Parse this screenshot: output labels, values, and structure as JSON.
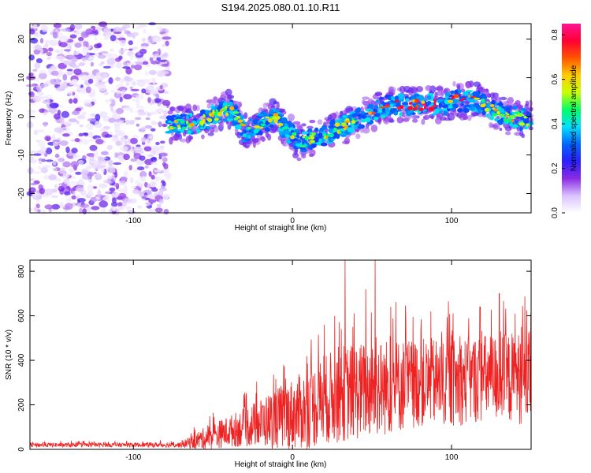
{
  "title": "S194.2025.080.01.10.R11",
  "chart_data": [
    {
      "type": "heatmap",
      "xlabel": "Height of straight line (km)",
      "ylabel": "Frequency (Hz)",
      "xlim": [
        -165,
        150
      ],
      "ylim": [
        -25,
        24
      ],
      "xticks": [
        -100,
        0,
        100
      ],
      "yticks": [
        -20,
        -10,
        0,
        10,
        20
      ],
      "noise_region_x": [
        -165,
        -78
      ],
      "ridge": {
        "x": [
          -78,
          -70,
          -60,
          -50,
          -45,
          -40,
          -35,
          -30,
          -25,
          -20,
          -15,
          -10,
          -5,
          0,
          5,
          10,
          15,
          20,
          25,
          30,
          35,
          40,
          45,
          50,
          55,
          60,
          65,
          70,
          75,
          80,
          85,
          90,
          95,
          100,
          105,
          110,
          115,
          120,
          125,
          130,
          135,
          140,
          145,
          150
        ],
        "freq": [
          -2,
          -2,
          -2,
          0,
          1,
          2,
          0,
          -4,
          -3,
          -2,
          -1,
          0,
          -3,
          -5,
          -7,
          -6,
          -5,
          -5,
          -4,
          -3,
          -2,
          -1,
          0,
          1,
          2,
          3,
          3,
          3,
          3,
          3,
          3,
          3,
          3,
          4,
          4,
          4,
          4,
          3,
          2,
          1,
          0,
          0,
          -1,
          -1
        ]
      },
      "colorbar": {
        "label": "Normalized spectral amplitude",
        "range": [
          0.0,
          0.85
        ],
        "ticks": [
          "0.0",
          "0.2",
          "0.4",
          "0.6",
          "0.8"
        ],
        "tick_values": [
          0.0,
          0.2,
          0.4,
          0.6,
          0.8
        ],
        "colors": [
          "#ffffff",
          "#d9c2ff",
          "#8a2be2",
          "#2a1fff",
          "#0066ff",
          "#00e0ff",
          "#00ff66",
          "#c8ff00",
          "#ffcc00",
          "#ff5500",
          "#ff0033",
          "#ff1493"
        ]
      }
    },
    {
      "type": "line",
      "xlabel": "Height of straight line (km)",
      "ylabel": "SNR (10 * v/v)",
      "xlim": [
        -165,
        150
      ],
      "ylim": [
        0,
        850
      ],
      "xticks": [
        -100,
        0,
        100
      ],
      "yticks": [
        0,
        200,
        400,
        600,
        800
      ],
      "color": "#ee2222",
      "envelope": {
        "x": [
          -165,
          -100,
          -70,
          -60,
          -50,
          -40,
          -30,
          -20,
          -10,
          0,
          10,
          20,
          30,
          40,
          50,
          60,
          70,
          80,
          90,
          100,
          110,
          120,
          130,
          140,
          150
        ],
        "center": [
          20,
          20,
          20,
          40,
          60,
          80,
          100,
          120,
          140,
          160,
          180,
          220,
          250,
          260,
          270,
          280,
          290,
          300,
          300,
          300,
          310,
          320,
          320,
          320,
          320
        ],
        "spread": [
          10,
          10,
          12,
          40,
          60,
          70,
          90,
          110,
          140,
          160,
          180,
          200,
          220,
          220,
          220,
          220,
          210,
          200,
          200,
          200,
          200,
          200,
          200,
          210,
          210
        ]
      },
      "peaks": [
        {
          "x": 33,
          "y": 850
        },
        {
          "x": 52,
          "y": 850
        },
        {
          "x": 46,
          "y": 720
        },
        {
          "x": 20,
          "y": 560
        },
        {
          "x": 98,
          "y": 665
        },
        {
          "x": 130,
          "y": 700
        },
        {
          "x": 118,
          "y": 640
        },
        {
          "x": 87,
          "y": 620
        },
        {
          "x": 140,
          "y": 610
        }
      ]
    }
  ]
}
